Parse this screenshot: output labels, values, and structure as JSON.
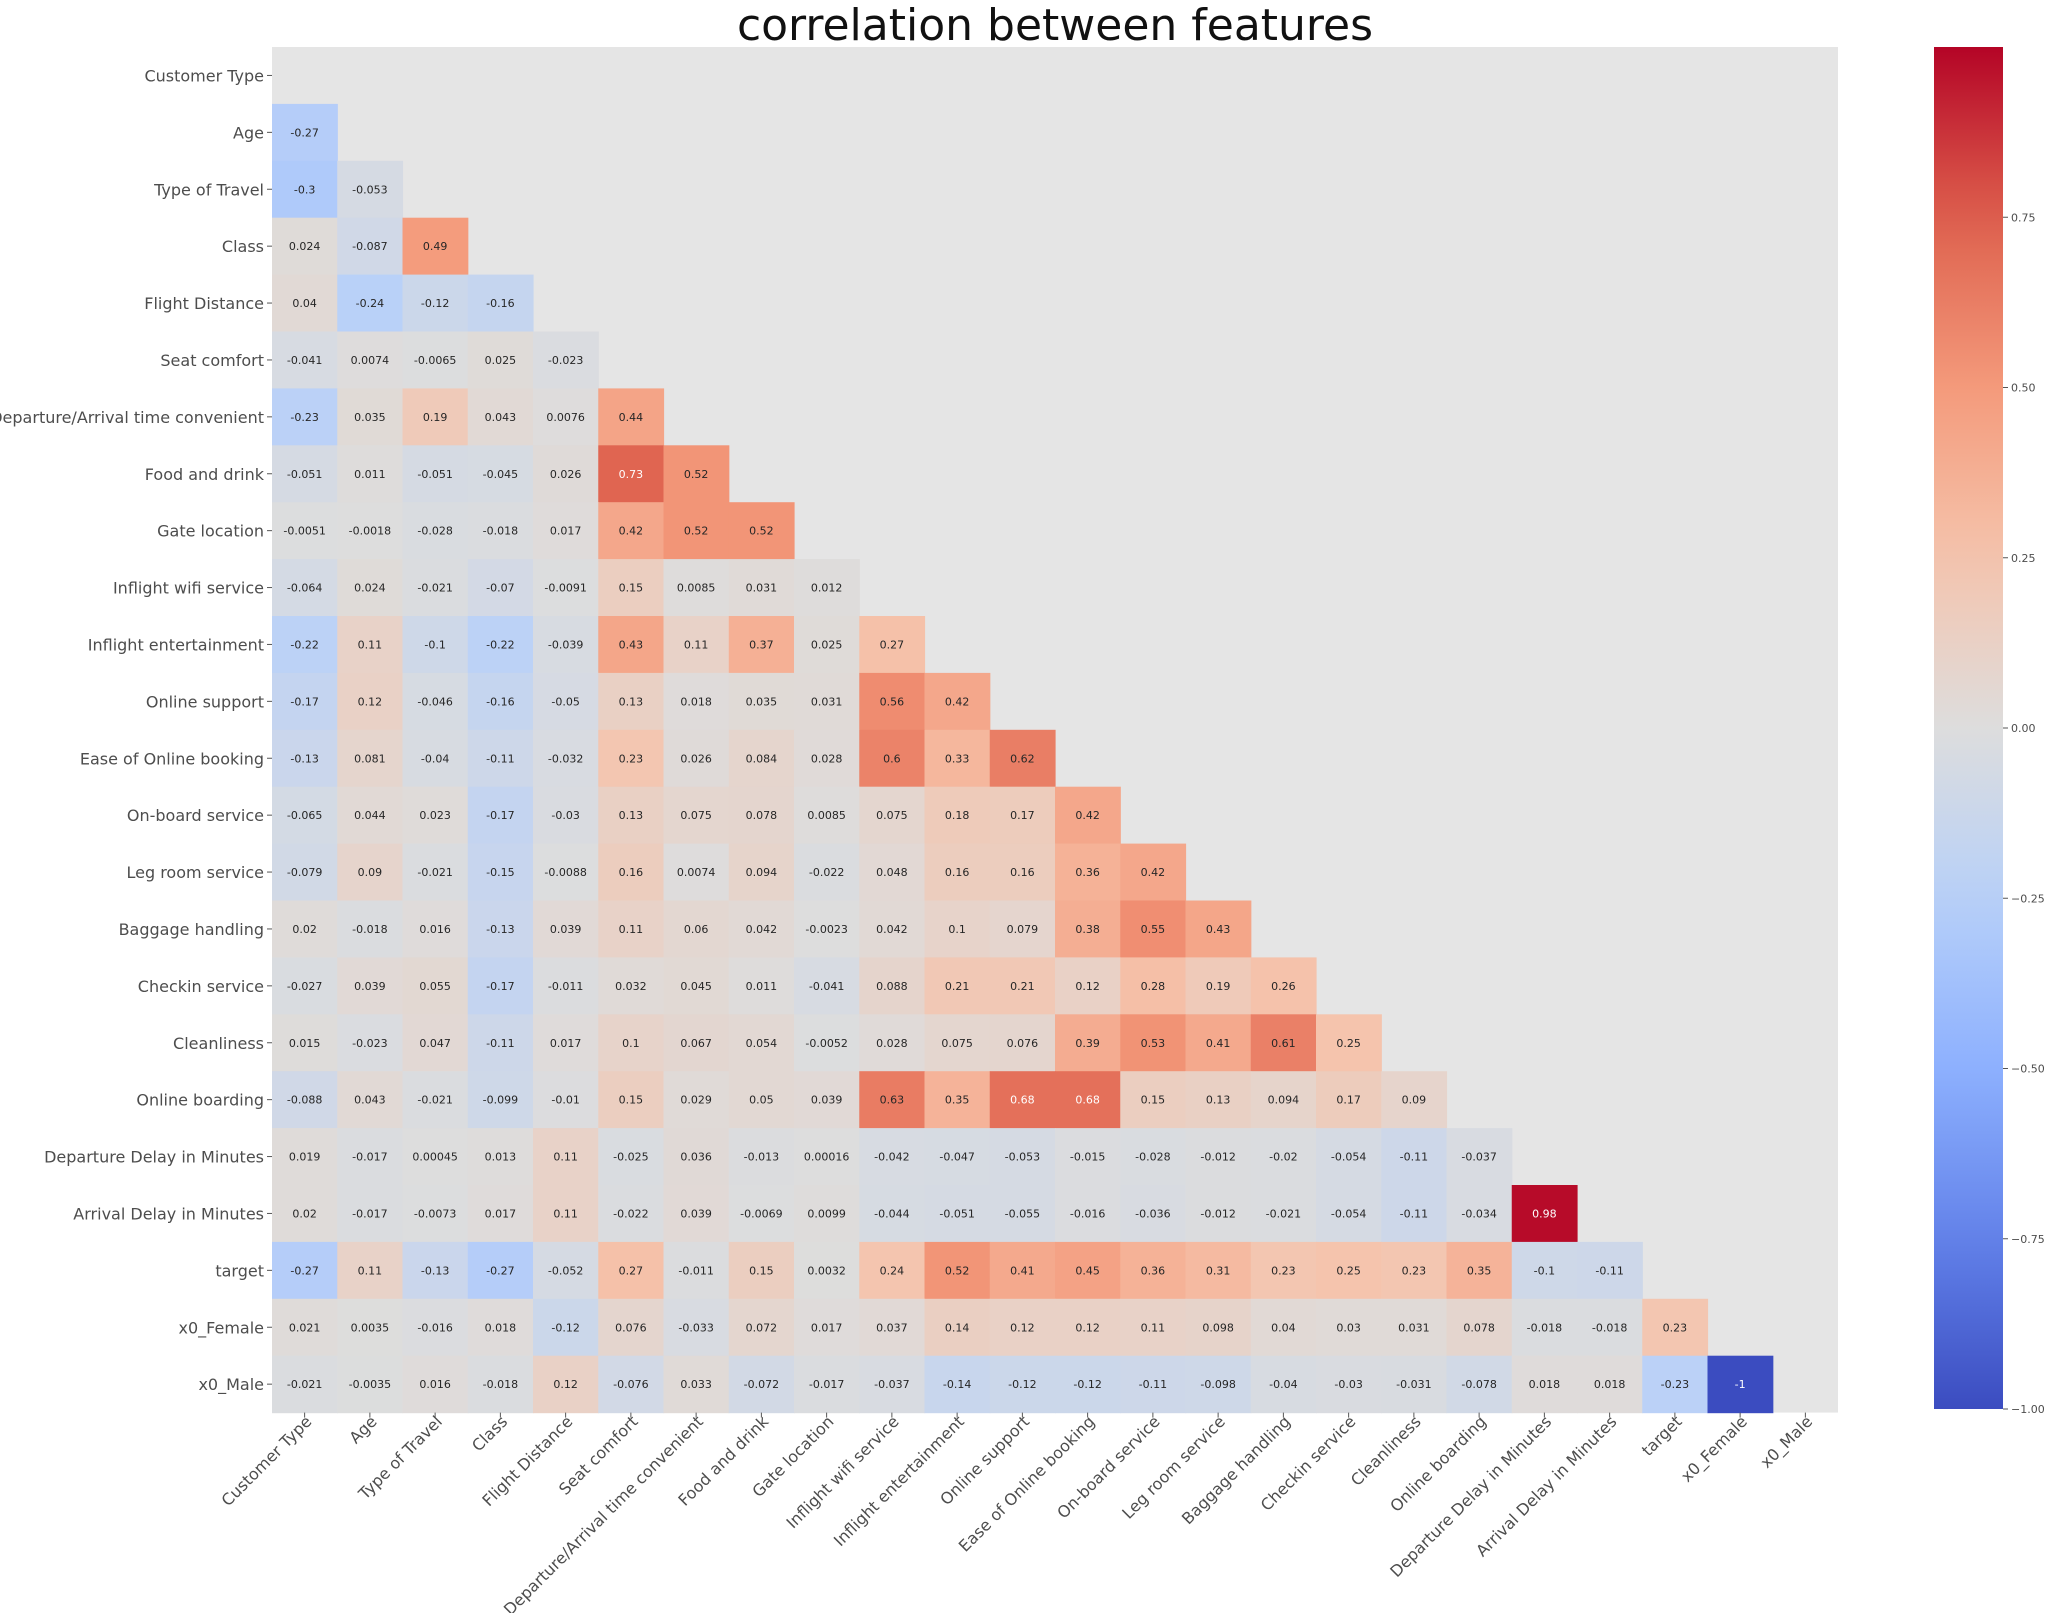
{
  "chart_data": {
    "type": "heatmap",
    "title": "correlation between features",
    "colormap": "coolwarm",
    "mask": "upper-triangle-and-diagonal",
    "panel_background": "#e5e5e5",
    "vmin": -1,
    "vmax": 1,
    "labels": [
      "Customer Type",
      "Age",
      "Type of Travel",
      "Class",
      "Flight Distance",
      "Seat comfort",
      "Departure/Arrival time convenient",
      "Food and drink",
      "Gate location",
      "Inflight wifi service",
      "Inflight entertainment",
      "Online support",
      "Ease of Online booking",
      "On-board service",
      "Leg room service",
      "Baggage handling",
      "Checkin service",
      "Cleanliness",
      "Online boarding",
      "Departure Delay in Minutes",
      "Arrival Delay in Minutes",
      "target",
      "x0_Female",
      "x0_Male"
    ],
    "annotations": [
      [],
      [
        "-0.27"
      ],
      [
        "-0.3",
        "-0.053"
      ],
      [
        "0.024",
        "-0.087",
        "0.49"
      ],
      [
        "0.04",
        "-0.24",
        "-0.12",
        "-0.16"
      ],
      [
        "-0.041",
        "0.0074",
        "-0.0065",
        "0.025",
        "-0.023"
      ],
      [
        "-0.23",
        "0.035",
        "0.19",
        "0.043",
        "0.0076",
        "0.44"
      ],
      [
        "-0.051",
        "0.011",
        "-0.051",
        "-0.045",
        "0.026",
        "0.73",
        "0.52"
      ],
      [
        "-0.0051",
        "-0.0018",
        "-0.028",
        "-0.018",
        "0.017",
        "0.42",
        "0.52",
        "0.52"
      ],
      [
        "-0.064",
        "0.024",
        "-0.021",
        "-0.07",
        "-0.0091",
        "0.15",
        "0.0085",
        "0.031",
        "0.012"
      ],
      [
        "-0.22",
        "0.11",
        "-0.1",
        "-0.22",
        "-0.039",
        "0.43",
        "0.11",
        "0.37",
        "0.025",
        "0.27"
      ],
      [
        "-0.17",
        "0.12",
        "-0.046",
        "-0.16",
        "-0.05",
        "0.13",
        "0.018",
        "0.035",
        "0.031",
        "0.56",
        "0.42"
      ],
      [
        "-0.13",
        "0.081",
        "-0.04",
        "-0.11",
        "-0.032",
        "0.23",
        "0.026",
        "0.084",
        "0.028",
        "0.6",
        "0.33",
        "0.62"
      ],
      [
        "-0.065",
        "0.044",
        "0.023",
        "-0.17",
        "-0.03",
        "0.13",
        "0.075",
        "0.078",
        "0.0085",
        "0.075",
        "0.18",
        "0.17",
        "0.42"
      ],
      [
        "-0.079",
        "0.09",
        "-0.021",
        "-0.15",
        "-0.0088",
        "0.16",
        "0.0074",
        "0.094",
        "-0.022",
        "0.048",
        "0.16",
        "0.16",
        "0.36",
        "0.42"
      ],
      [
        "0.02",
        "-0.018",
        "0.016",
        "-0.13",
        "0.039",
        "0.11",
        "0.06",
        "0.042",
        "-0.0023",
        "0.042",
        "0.1",
        "0.079",
        "0.38",
        "0.55",
        "0.43"
      ],
      [
        "-0.027",
        "0.039",
        "0.055",
        "-0.17",
        "-0.011",
        "0.032",
        "0.045",
        "0.011",
        "-0.041",
        "0.088",
        "0.21",
        "0.21",
        "0.12",
        "0.28",
        "0.19",
        "0.26"
      ],
      [
        "0.015",
        "-0.023",
        "0.047",
        "-0.11",
        "0.017",
        "0.1",
        "0.067",
        "0.054",
        "-0.0052",
        "0.028",
        "0.075",
        "0.076",
        "0.39",
        "0.53",
        "0.41",
        "0.61",
        "0.25"
      ],
      [
        "-0.088",
        "0.043",
        "-0.021",
        "-0.099",
        "-0.01",
        "0.15",
        "0.029",
        "0.05",
        "0.039",
        "0.63",
        "0.35",
        "0.68",
        "0.68",
        "0.15",
        "0.13",
        "0.094",
        "0.17",
        "0.09"
      ],
      [
        "0.019",
        "-0.017",
        "0.00045",
        "0.013",
        "0.11",
        "-0.025",
        "0.036",
        "-0.013",
        "0.00016",
        "-0.042",
        "-0.047",
        "-0.053",
        "-0.015",
        "-0.028",
        "-0.012",
        "-0.02",
        "-0.054",
        "-0.11",
        "-0.037"
      ],
      [
        "0.02",
        "-0.017",
        "-0.0073",
        "0.017",
        "0.11",
        "-0.022",
        "0.039",
        "-0.0069",
        "0.0099",
        "-0.044",
        "-0.051",
        "-0.055",
        "-0.016",
        "-0.036",
        "-0.012",
        "-0.021",
        "-0.054",
        "-0.11",
        "-0.034",
        "0.98"
      ],
      [
        "-0.27",
        "0.11",
        "-0.13",
        "-0.27",
        "-0.052",
        "0.27",
        "-0.011",
        "0.15",
        "0.0032",
        "0.24",
        "0.52",
        "0.41",
        "0.45",
        "0.36",
        "0.31",
        "0.23",
        "0.25",
        "0.23",
        "0.35",
        "-0.1",
        "-0.11"
      ],
      [
        "0.021",
        "0.0035",
        "-0.016",
        "0.018",
        "-0.12",
        "0.076",
        "-0.033",
        "0.072",
        "0.017",
        "0.037",
        "0.14",
        "0.12",
        "0.12",
        "0.11",
        "0.098",
        "0.04",
        "0.03",
        "0.031",
        "0.078",
        "-0.018",
        "-0.018",
        "0.23"
      ],
      [
        "-0.021",
        "-0.0035",
        "0.016",
        "-0.018",
        "0.12",
        "-0.076",
        "0.033",
        "-0.072",
        "-0.017",
        "-0.037",
        "-0.14",
        "-0.12",
        "-0.12",
        "-0.11",
        "-0.098",
        "-0.04",
        "-0.03",
        "-0.031",
        "-0.078",
        "0.018",
        "0.018",
        "-0.23",
        "-1"
      ]
    ],
    "colorbar": {
      "ticks": [
        "0.75",
        "0.50",
        "0.25",
        "0.00",
        "−0.25",
        "−0.50",
        "−0.75",
        "−1.00"
      ],
      "tick_values": [
        0.75,
        0.5,
        0.25,
        0,
        -0.25,
        -0.5,
        -0.75,
        -1
      ]
    }
  }
}
